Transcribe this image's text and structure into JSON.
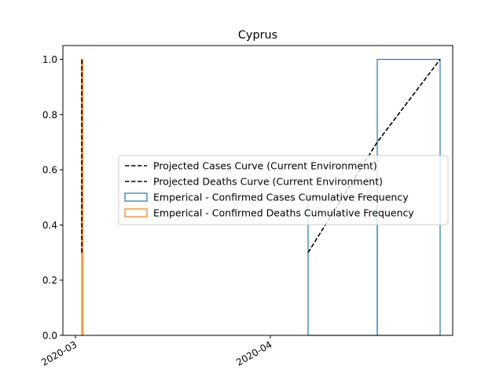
{
  "chart_data": {
    "type": "line",
    "title": "Cyprus",
    "xlabel": "",
    "ylabel": "",
    "x_axis": {
      "type": "date",
      "range": [
        "2020-02-28",
        "2020-04-30"
      ],
      "ticks": [
        "2020-03-01",
        "2020-04-01"
      ],
      "tick_labels": [
        "2020-03",
        "2020-04"
      ]
    },
    "ylim": [
      0,
      1.0
    ],
    "yticks": [
      0.0,
      0.2,
      0.4,
      0.6,
      0.8,
      1.0
    ],
    "ytick_labels": [
      "0.0",
      "0.2",
      "0.4",
      "0.6",
      "0.8",
      "1.0"
    ],
    "grid": false,
    "legend_placement": "center-right",
    "series": [
      {
        "name": "Projected Cases Curve (Current Environment)",
        "kind": "line",
        "style": "dashed",
        "color": "#000000",
        "points": [
          {
            "x": "2020-04-07",
            "y": 0.3
          },
          {
            "x": "2020-04-18",
            "y": 0.7
          },
          {
            "x": "2020-04-28",
            "y": 1.0
          }
        ]
      },
      {
        "name": "Projected Deaths Curve (Current Environment)",
        "kind": "line",
        "style": "dashed",
        "color": "#000000",
        "points": [
          {
            "x": "2020-03-02",
            "y": 0.3
          },
          {
            "x": "2020-03-02",
            "y": 1.0
          }
        ]
      },
      {
        "name": "Emperical - Confirmed Cases Cumulative Frequency",
        "kind": "step-histogram",
        "color": "#1f77b4",
        "bins": [
          {
            "x0": "2020-04-07",
            "x1": "2020-04-18",
            "y": 0.5
          },
          {
            "x0": "2020-04-18",
            "x1": "2020-04-28",
            "y": 1.0
          }
        ]
      },
      {
        "name": "Emperical - Confirmed Deaths Cumulative Frequency",
        "kind": "step-histogram",
        "color": "#ff7f0e",
        "bins": [
          {
            "x0": "2020-03-02",
            "x1": "2020-03-02",
            "y": 1.0
          }
        ]
      }
    ]
  }
}
